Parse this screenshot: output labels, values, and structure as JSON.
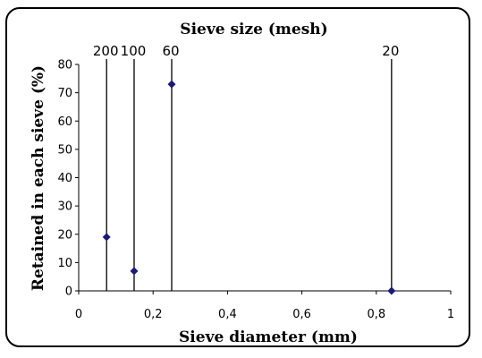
{
  "chart_data": {
    "type": "scatter",
    "title": "Sieve size (mesh)",
    "xlabel": "Sieve diameter (mm)",
    "ylabel": "Retained in each sieve (%)",
    "xlim": [
      0,
      1
    ],
    "ylim": [
      0,
      80
    ],
    "x_ticks": [
      "0",
      "0,2",
      "0,4",
      "0,6",
      "0,8",
      "1"
    ],
    "y_ticks": [
      "0",
      "10",
      "20",
      "30",
      "40",
      "50",
      "60",
      "70",
      "80"
    ],
    "grid": false,
    "series": [
      {
        "x": [
          0.075,
          0.149,
          0.25,
          0.841
        ],
        "values": [
          19,
          7,
          73,
          0
        ]
      }
    ],
    "top_axis": {
      "labels": [
        {
          "label": "200",
          "x": 0.075
        },
        {
          "label": "100",
          "x": 0.149
        },
        {
          "label": "60",
          "x": 0.25
        },
        {
          "label": "20",
          "x": 0.841
        }
      ]
    },
    "colors": {
      "marker": "#1a1a7a",
      "axis": "#000000"
    }
  }
}
